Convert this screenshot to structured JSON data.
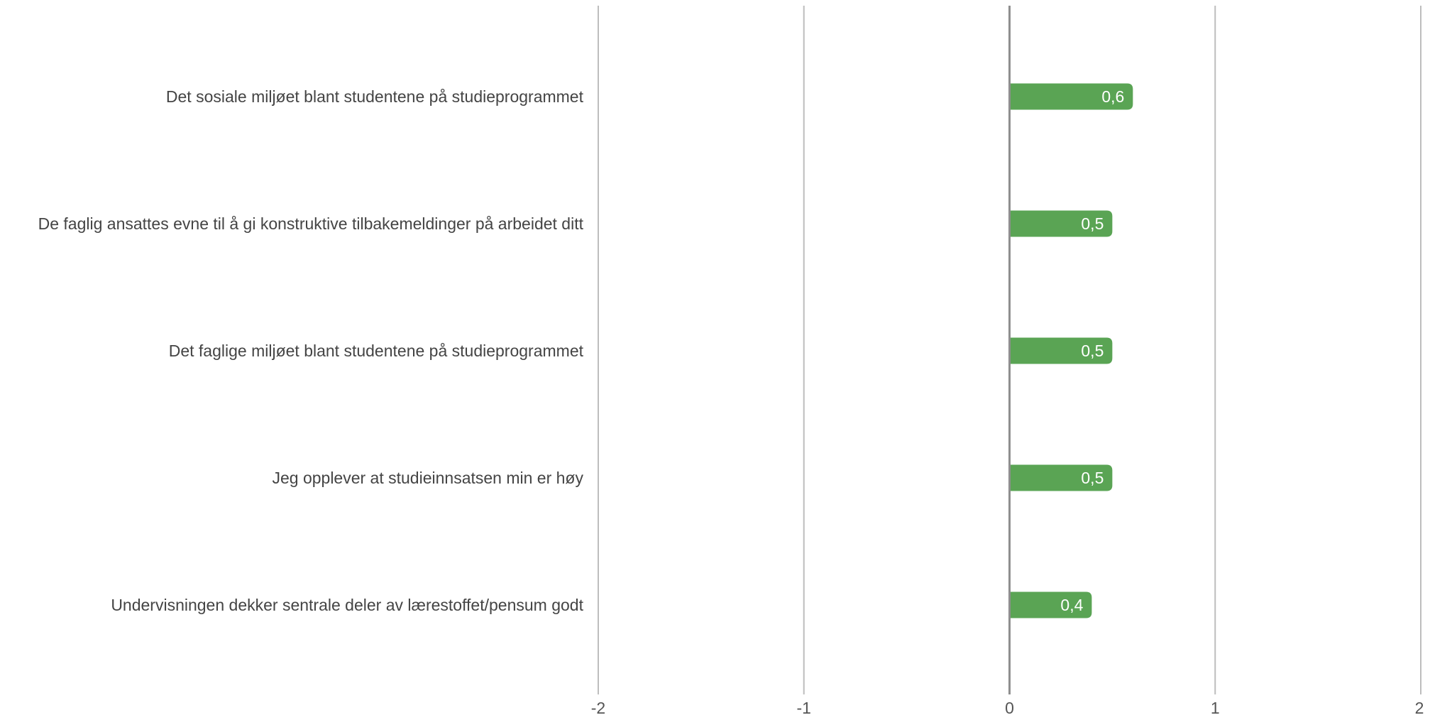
{
  "chart_data": {
    "type": "bar",
    "orientation": "horizontal",
    "categories": [
      "Det sosiale miljøet blant studentene på studieprogrammet",
      "De faglig ansattes evne til å gi konstruktive tilbakemeldinger på arbeidet ditt",
      "Det faglige miljøet blant studentene på studieprogrammet",
      "Jeg opplever at studieinnsatsen min er høy",
      "Undervisningen dekker sentrale deler av lærestoffet/pensum godt"
    ],
    "values": [
      0.6,
      0.5,
      0.5,
      0.5,
      0.4
    ],
    "data_labels": [
      "0,6",
      "0,5",
      "0,5",
      "0,5",
      "0,4"
    ],
    "xlim": [
      -2,
      2
    ],
    "x_ticks": [
      -2,
      -1,
      0,
      1,
      2
    ],
    "x_tick_labels": [
      "-2",
      "-1",
      "0",
      "1",
      "2"
    ],
    "grid": true,
    "bar_color": "#5aa454",
    "grid_color": "#bdbdbd"
  }
}
